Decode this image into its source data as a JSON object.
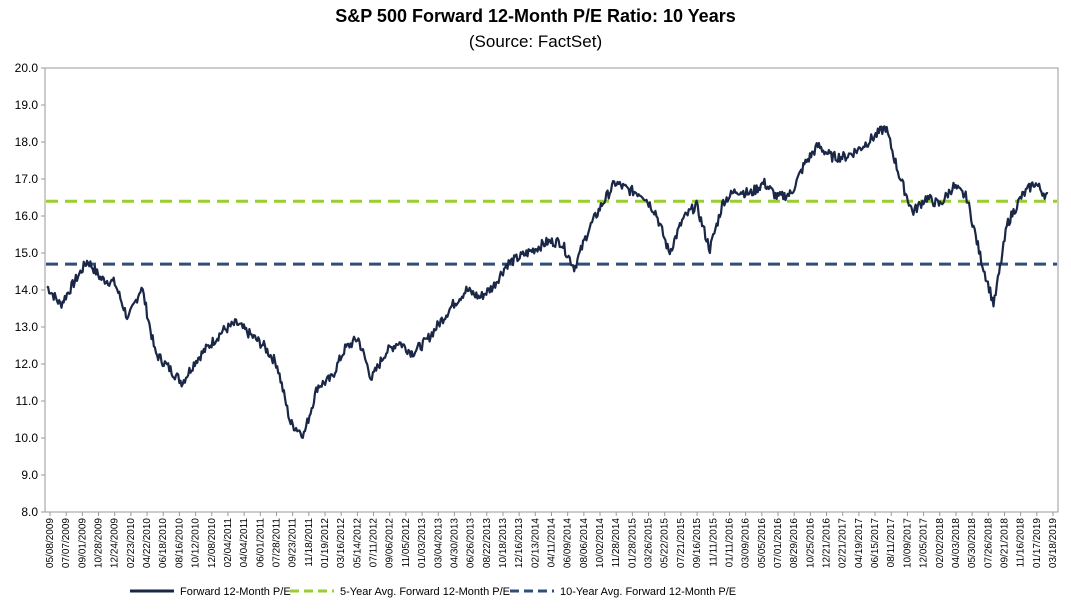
{
  "chart_data": {
    "type": "line",
    "title": "S&P 500 Forward 12-Month P/E Ratio: 10 Years",
    "subtitle": "(Source: FactSet)",
    "xlabel": "",
    "ylabel": "",
    "ylim": [
      8.0,
      20.0
    ],
    "y_ticks": [
      "20.0",
      "19.0",
      "18.0",
      "17.0",
      "16.0",
      "15.0",
      "14.0",
      "13.0",
      "12.0",
      "11.0",
      "10.0",
      "9.0",
      "8.0"
    ],
    "x_ticks": [
      "05/08/2009",
      "07/07/2009",
      "09/01/2009",
      "10/28/2009",
      "12/24/2009",
      "02/23/2010",
      "04/22/2010",
      "06/18/2010",
      "08/16/2010",
      "10/12/2010",
      "12/08/2010",
      "02/04/2011",
      "04/04/2011",
      "06/01/2011",
      "07/28/2011",
      "09/23/2011",
      "11/18/2011",
      "01/19/2012",
      "03/16/2012",
      "05/14/2012",
      "07/11/2012",
      "09/06/2012",
      "11/05/2012",
      "01/03/2013",
      "03/04/2013",
      "04/30/2013",
      "06/26/2013",
      "08/22/2013",
      "10/18/2013",
      "12/16/2013",
      "02/13/2014",
      "04/11/2014",
      "06/09/2014",
      "08/06/2014",
      "10/02/2014",
      "11/28/2014",
      "01/28/2015",
      "03/26/2015",
      "05/22/2015",
      "07/21/2015",
      "09/16/2015",
      "11/11/2015",
      "01/11/2016",
      "03/09/2016",
      "05/05/2016",
      "07/01/2016",
      "08/29/2016",
      "10/25/2016",
      "12/21/2016",
      "02/21/2017",
      "04/19/2017",
      "06/15/2017",
      "08/11/2017",
      "10/09/2017",
      "12/05/2017",
      "02/02/2018",
      "04/03/2018",
      "05/30/2018",
      "07/26/2018",
      "09/21/2018",
      "11/16/2018",
      "01/17/2019",
      "03/18/2019"
    ],
    "grid": {
      "horizontal": false,
      "vertical": false
    },
    "legend_position": "bottom",
    "series": [
      {
        "name": "Forward 12-Month P/E",
        "color": "#1a2746",
        "style": "solid",
        "values": [
          14.1,
          13.6,
          14.2,
          14.8,
          14.3,
          14.2,
          13.2,
          14.1,
          12.3,
          11.9,
          11.5,
          12.1,
          12.5,
          12.9,
          13.1,
          12.8,
          12.5,
          12.0,
          10.4,
          10.1,
          11.4,
          11.6,
          12.4,
          12.7,
          11.6,
          12.3,
          12.6,
          12.3,
          12.6,
          13.1,
          13.6,
          14.0,
          13.8,
          14.1,
          14.7,
          14.9,
          15.1,
          15.3,
          15.3,
          14.6,
          15.6,
          16.3,
          16.9,
          16.7,
          16.6,
          16.1,
          15.0,
          15.9,
          16.3,
          15.1,
          16.4,
          16.7,
          16.6,
          16.9,
          16.5,
          16.6,
          17.4,
          17.9,
          17.6,
          17.6,
          17.8,
          18.1,
          18.4,
          17.1,
          16.1,
          16.5,
          16.3,
          16.8,
          16.5,
          14.9,
          13.6,
          15.8,
          16.5,
          16.9,
          16.5
        ]
      },
      {
        "name": "5-Year Avg. Forward 12-Month P/E",
        "color": "#9acd32",
        "style": "dashed",
        "values": [
          16.4
        ]
      },
      {
        "name": "10-Year Avg. Forward 12-Month P/E",
        "color": "#2e4f7c",
        "style": "dashed",
        "values": [
          14.7
        ]
      }
    ]
  }
}
